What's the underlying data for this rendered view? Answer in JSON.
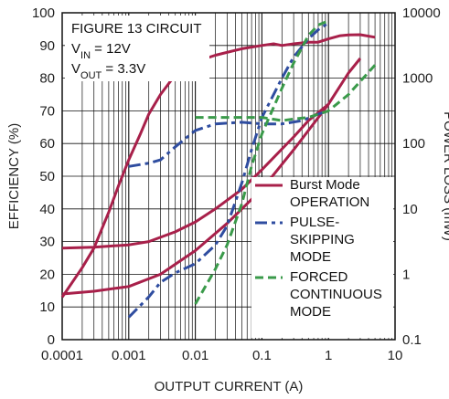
{
  "chart_data": {
    "type": "line",
    "x_scale": "log",
    "xlim": [
      0.0001,
      10
    ],
    "xlabel": "OUTPUT CURRENT (A)",
    "x_ticks": [
      "0.0001",
      "0.001",
      "0.01",
      "0.1",
      "1",
      "10"
    ],
    "ylabel": "EFFICIENCY (%)",
    "ylim": [
      0,
      100
    ],
    "y_ticks": [
      "0",
      "10",
      "20",
      "30",
      "40",
      "50",
      "60",
      "70",
      "80",
      "90",
      "100"
    ],
    "y2label": "POWER LOSS (mW)",
    "y2_scale": "log",
    "y2lim": [
      0.1,
      10000
    ],
    "y2_ticks": [
      "0.1",
      "1",
      "10",
      "100",
      "1000",
      "10000"
    ],
    "annotation_lines": [
      {
        "main": "FIGURE 13 CIRCUIT",
        "sub": "",
        "rest": ""
      },
      {
        "main": "V",
        "sub": "IN",
        "rest": " = 12V"
      },
      {
        "main": "V",
        "sub": "OUT",
        "rest": " = 3.3V"
      }
    ],
    "grid": true,
    "series": [
      {
        "name": "Burst Mode OPERATION",
        "name_lines": [
          "Burst Mode",
          "OPERATION"
        ],
        "style": "solid",
        "color": "#a8204a",
        "efficiency": [
          [
            0.0001,
            13
          ],
          [
            0.0002,
            22
          ],
          [
            0.0003,
            28
          ],
          [
            0.0005,
            39
          ],
          [
            0.0007,
            47
          ],
          [
            0.001,
            55
          ],
          [
            0.0015,
            63
          ],
          [
            0.002,
            69
          ],
          [
            0.003,
            75
          ],
          [
            0.005,
            81
          ],
          [
            0.007,
            84
          ],
          [
            0.01,
            85
          ],
          [
            0.02,
            87
          ],
          [
            0.05,
            89
          ],
          [
            0.1,
            90
          ],
          [
            0.15,
            90.5
          ],
          [
            0.2,
            90
          ],
          [
            0.3,
            90.5
          ],
          [
            0.5,
            91
          ],
          [
            0.7,
            91
          ],
          [
            1,
            92
          ],
          [
            1.5,
            93
          ],
          [
            2,
            93.2
          ],
          [
            3,
            93.3
          ],
          [
            5,
            92.5
          ]
        ],
        "efficiency_lossbranch": [
          [
            0.0001,
            28
          ],
          [
            0.0003,
            28.3
          ],
          [
            0.001,
            29
          ],
          [
            0.002,
            30
          ],
          [
            0.005,
            33
          ],
          [
            0.01,
            36
          ],
          [
            0.02,
            40
          ],
          [
            0.05,
            46
          ],
          [
            0.1,
            52
          ],
          [
            0.3,
            62
          ],
          [
            0.5,
            67
          ],
          [
            1,
            72
          ]
        ],
        "power_loss": [
          [
            0.0001,
            0.5
          ],
          [
            0.0003,
            0.55
          ],
          [
            0.001,
            0.65
          ],
          [
            0.003,
            1
          ],
          [
            0.01,
            2.3
          ],
          [
            0.03,
            6
          ],
          [
            0.1,
            20
          ],
          [
            0.3,
            80
          ],
          [
            1,
            400
          ],
          [
            2,
            1200
          ],
          [
            3,
            2000
          ]
        ]
      },
      {
        "name": "PULSE-SKIPPING MODE",
        "name_lines": [
          "PULSE-",
          "SKIPPING",
          "MODE"
        ],
        "style": "dashdot",
        "color": "#2f4da0",
        "efficiency": [
          [
            0.001,
            53
          ],
          [
            0.002,
            54
          ],
          [
            0.003,
            55
          ],
          [
            0.005,
            59
          ],
          [
            0.01,
            64
          ],
          [
            0.02,
            66
          ],
          [
            0.05,
            66.5
          ],
          [
            0.1,
            66
          ],
          [
            0.2,
            66
          ],
          [
            0.4,
            67
          ],
          [
            0.7,
            69
          ],
          [
            1,
            70
          ]
        ],
        "power_loss": [
          [
            0.001,
            0.22
          ],
          [
            0.002,
            0.45
          ],
          [
            0.003,
            0.75
          ],
          [
            0.005,
            1.05
          ],
          [
            0.01,
            1.45
          ],
          [
            0.02,
            2.8
          ],
          [
            0.03,
            5.5
          ],
          [
            0.05,
            25
          ],
          [
            0.07,
            80
          ],
          [
            0.1,
            250
          ],
          [
            0.2,
            1000
          ],
          [
            0.3,
            2100
          ],
          [
            0.5,
            4000
          ],
          [
            0.7,
            5500
          ],
          [
            1,
            7000
          ]
        ]
      },
      {
        "name": "FORCED CONTINUOUS MODE",
        "name_lines": [
          "FORCED",
          "CONTINUOUS",
          "MODE"
        ],
        "style": "dashed",
        "color": "#3a9a4a",
        "efficiency": [
          [
            0.01,
            68
          ],
          [
            0.02,
            68
          ],
          [
            0.05,
            68
          ],
          [
            0.1,
            68
          ],
          [
            0.2,
            67
          ],
          [
            0.3,
            67.5
          ],
          [
            0.5,
            68
          ],
          [
            1,
            70
          ],
          [
            2,
            75
          ],
          [
            3,
            79
          ],
          [
            5,
            84
          ]
        ],
        "power_loss": [
          [
            0.01,
            0.35
          ],
          [
            0.02,
            1.2
          ],
          [
            0.03,
            2.8
          ],
          [
            0.05,
            12
          ],
          [
            0.07,
            45
          ],
          [
            0.1,
            140
          ],
          [
            0.2,
            700
          ],
          [
            0.3,
            1700
          ],
          [
            0.5,
            4500
          ],
          [
            0.7,
            6500
          ],
          [
            1,
            7500
          ]
        ]
      }
    ]
  }
}
